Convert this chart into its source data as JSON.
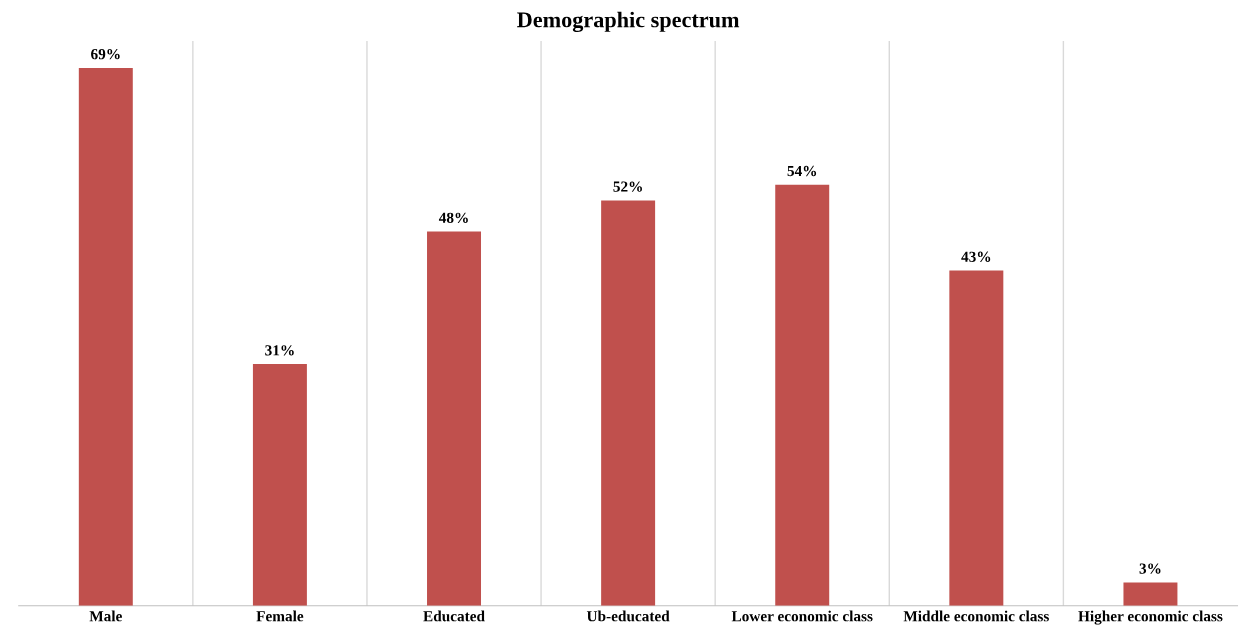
{
  "chart_data": {
    "type": "bar",
    "title": "Demographic spectrum",
    "categories": [
      "Male",
      "Female",
      "Educated",
      "Ub-educated",
      "Lower economic class",
      "Middle economic class",
      "Higher economic class"
    ],
    "values": [
      69,
      31,
      48,
      52,
      54,
      43,
      3
    ],
    "value_labels": [
      "69%",
      "31%",
      "48%",
      "52%",
      "54%",
      "43%",
      "3%"
    ],
    "color": "#c0504d",
    "grid": "x",
    "tick_labels": "x"
  }
}
